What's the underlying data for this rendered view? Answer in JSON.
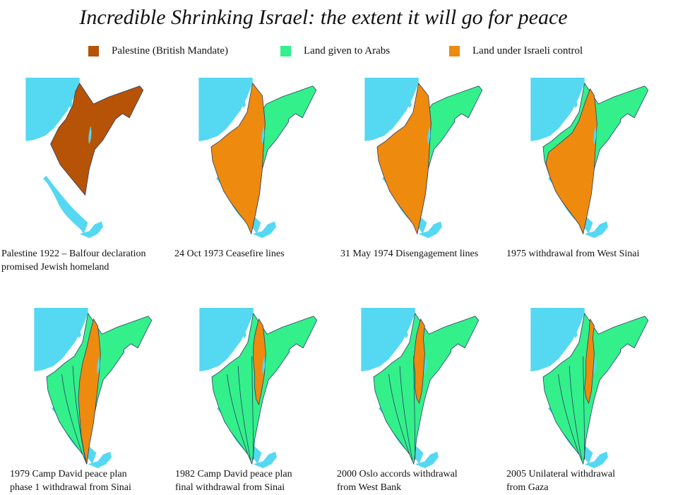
{
  "title": "Incredible Shrinking Israel: the extent it will go for peace",
  "colors": {
    "palestine_mandate": "#B65306",
    "land_given_to_arabs": "#33F08A",
    "land_under_israeli_control": "#EE8A0E",
    "sea": "#55D8F2",
    "border_line": "#2A3A66"
  },
  "legend": [
    {
      "label": "Palestine (British Mandate)",
      "color_key": "palestine_mandate"
    },
    {
      "label": "Land given to Arabs",
      "color_key": "land_given_to_arabs"
    },
    {
      "label": "Land under Israeli control",
      "color_key": "land_under_israeli_control"
    }
  ],
  "panels": [
    {
      "caption": [
        "Palestine 1922 – Balfour declaration",
        "promised Jewish homeland"
      ]
    },
    {
      "caption": [
        "24 Oct 1973 Ceasefire lines"
      ]
    },
    {
      "caption": [
        "31 May 1974 Disengagement  lines"
      ]
    },
    {
      "caption": [
        "1975 withdrawal from West Sinai"
      ]
    },
    {
      "caption": [
        "1979 Camp David peace plan",
        "phase 1 withdrawal from Sinai"
      ]
    },
    {
      "caption": [
        "1982 Camp David peace plan",
        "final withdrawal from Sinai"
      ]
    },
    {
      "caption": [
        "2000 Oslo accords withdrawal",
        "from West Bank"
      ]
    },
    {
      "caption": [
        "2005 Unilateral withdrawal",
        "from Gaza"
      ]
    }
  ]
}
